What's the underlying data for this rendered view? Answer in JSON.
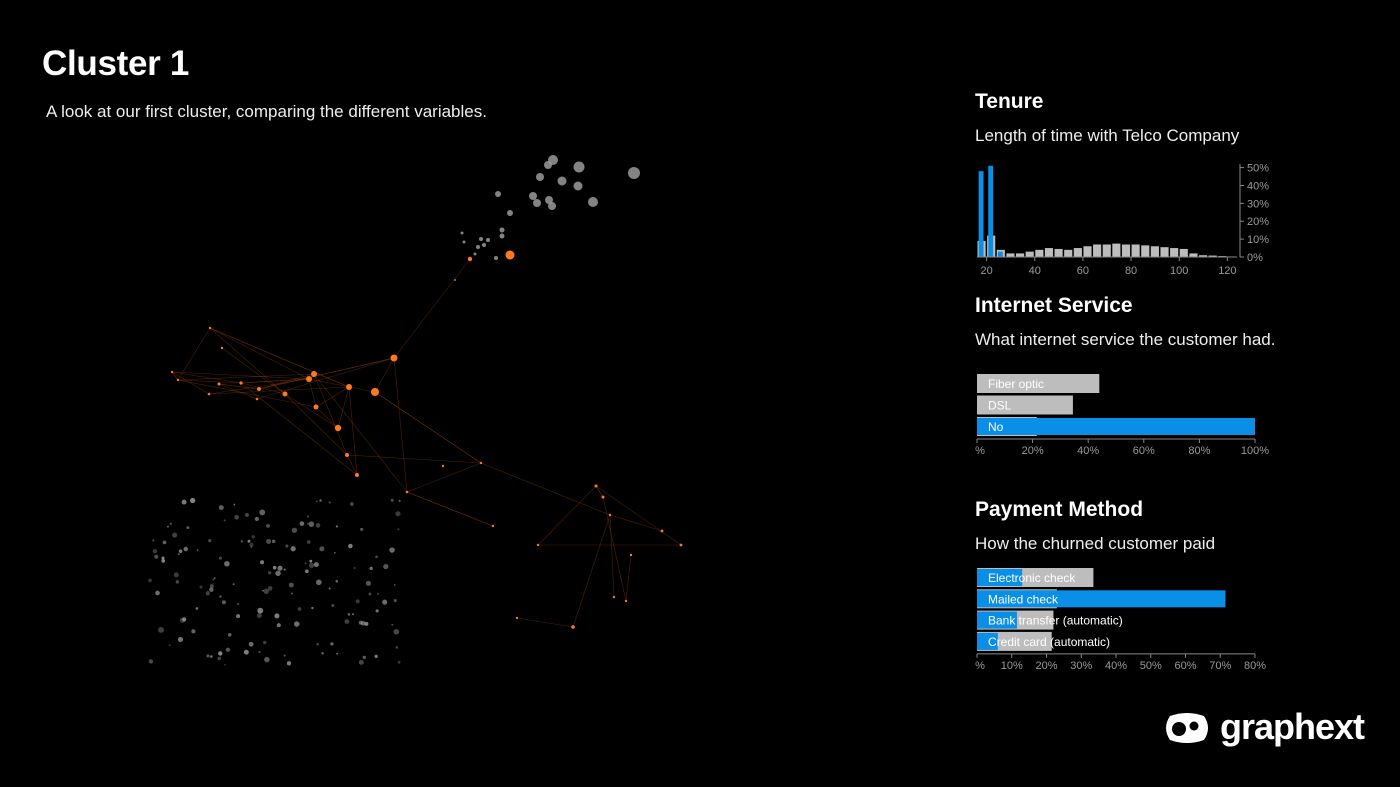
{
  "page": {
    "title": "Cluster 1",
    "subtitle": "A look at our first cluster, comparing the different variables."
  },
  "colors": {
    "highlight": "#0a8fe8",
    "base": "#bdbdbd",
    "node_orange": "#ff7a1a",
    "node_gray": "#9a9a9a",
    "background": "#000000"
  },
  "logo": {
    "text": "graphext",
    "icon": "graphext-logo-icon"
  },
  "chart_data": [
    {
      "id": "tenure",
      "type": "bar",
      "title": "Tenure",
      "subtitle": "Length of time with Telco Company",
      "xlabel": "",
      "ylabel": "",
      "x_ticks": [
        "20",
        "40",
        "60",
        "80",
        "100",
        "120"
      ],
      "y_ticks": [
        "0%",
        "10%",
        "20%",
        "30%",
        "40%",
        "50%"
      ],
      "xlim": [
        16,
        124
      ],
      "ylim": [
        0,
        52
      ],
      "bin_width": 4,
      "series": [
        {
          "bins_start": [
            16,
            20,
            24,
            28,
            32,
            36,
            40,
            44,
            48,
            52,
            56,
            60,
            64,
            68,
            72,
            76,
            80,
            84,
            88,
            92,
            96,
            100,
            104,
            108,
            112,
            116,
            120
          ],
          "values": [
            48,
            51,
            3,
            0.5,
            0.3,
            0.3,
            0.2,
            0.2,
            0.2,
            0.2,
            0.1,
            0.1,
            0.1,
            0.1,
            0.1,
            0.1,
            0.1,
            0.1,
            0.1,
            0.1,
            0.1,
            0.1,
            0.1,
            0.1,
            0.1,
            0.1,
            0.1
          ],
          "role": "highlight"
        },
        {
          "bins_start": [
            16,
            20,
            24,
            28,
            32,
            36,
            40,
            44,
            48,
            52,
            56,
            60,
            64,
            68,
            72,
            76,
            80,
            84,
            88,
            92,
            96,
            100,
            104,
            108,
            112,
            116,
            120
          ],
          "values": [
            9,
            12,
            4,
            2,
            2,
            3,
            4,
            5,
            4.5,
            4,
            5,
            6,
            7,
            7,
            7.5,
            7,
            7,
            6.5,
            6,
            5.5,
            5,
            4.5,
            2,
            1,
            0.8,
            0.5,
            0.3
          ],
          "role": "base"
        }
      ]
    },
    {
      "id": "internet",
      "type": "bar",
      "orientation": "horizontal",
      "title": "Internet Service",
      "subtitle": "What internet service the customer had.",
      "categories": [
        "Fiber optic",
        "DSL",
        "No"
      ],
      "x_ticks": [
        "0%",
        "20%",
        "40%",
        "60%",
        "80%",
        "100%"
      ],
      "xlim": [
        0,
        100
      ],
      "series": [
        {
          "values": [
            44,
            34.5,
            21.5
          ],
          "role": "base"
        },
        {
          "values": [
            0,
            0,
            100
          ],
          "role": "highlight"
        }
      ]
    },
    {
      "id": "payment",
      "type": "bar",
      "orientation": "horizontal",
      "title": "Payment Method",
      "subtitle": "How the churned customer paid",
      "categories": [
        "Electronic check",
        "Mailed check",
        "Bank transfer (automatic)",
        "Credit card (automatic)"
      ],
      "x_ticks": [
        "0%",
        "10%",
        "20%",
        "30%",
        "40%",
        "50%",
        "60%",
        "70%",
        "80%"
      ],
      "xlim": [
        0,
        80
      ],
      "series": [
        {
          "values": [
            33.5,
            23,
            22,
            21.5
          ],
          "role": "base"
        },
        {
          "values": [
            13,
            71.5,
            11.5,
            6
          ],
          "role": "highlight"
        }
      ]
    }
  ]
}
